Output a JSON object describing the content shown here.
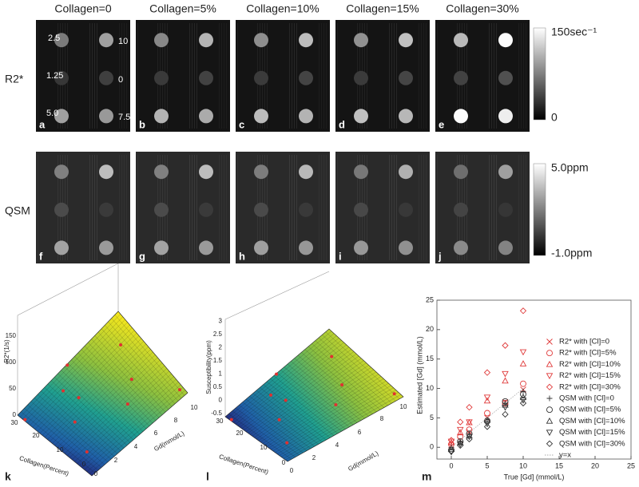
{
  "column_headers": [
    "Collagen=0",
    "Collagen=5%",
    "Collagen=10%",
    "Collagen=15%",
    "Collagen=30%"
  ],
  "row_labels": [
    "R2*",
    "QSM"
  ],
  "panel_letters": [
    "a",
    "b",
    "c",
    "d",
    "e",
    "f",
    "g",
    "h",
    "i",
    "j",
    "k",
    "l",
    "m"
  ],
  "concentration_labels": [
    "2.5",
    "10",
    "1.25",
    "0",
    "5.0",
    "7.5"
  ],
  "colorbars": [
    {
      "max": "150sec⁻¹",
      "min": "0"
    },
    {
      "max": "5.0ppm",
      "min": "-1.0ppm"
    }
  ],
  "panel_k": {
    "z_label": "R2*(1/s)",
    "z_ticks": [
      "0",
      "50",
      "100",
      "150"
    ],
    "collagen_label": "Collagen(Percent)",
    "collagen_ticks": [
      "30",
      "20",
      "10",
      "0"
    ],
    "gd_label": "Gd(mmol/L)",
    "gd_ticks": [
      "0",
      "2",
      "4",
      "6",
      "8",
      "10"
    ]
  },
  "panel_l": {
    "z_label": "Susceptibility(ppm)",
    "z_ticks": [
      "-0.5",
      "0",
      "0.5",
      "1",
      "1.5",
      "2",
      "2.5",
      "3"
    ],
    "collagen_label": "Collagen(Percent)",
    "collagen_ticks": [
      "30",
      "20",
      "10",
      "0"
    ],
    "gd_label": "Gd(mmol/L)",
    "gd_ticks": [
      "0",
      "2",
      "4",
      "6",
      "8",
      "10"
    ]
  },
  "chart_data": {
    "type": "scatter",
    "x_label": "True [Gd] (mmol/L)",
    "y_label": "Estimated [Gd] (mmol/L)",
    "x": [
      0,
      1.25,
      2.5,
      5,
      7.5,
      10
    ],
    "xlim": [
      -2,
      25
    ],
    "xticks": [
      0,
      5,
      10,
      15,
      20,
      25
    ],
    "ylim": [
      -2,
      25
    ],
    "yticks": [
      0,
      5,
      10,
      15,
      20,
      25
    ],
    "series": [
      {
        "name": "R2* with [Cl]=0",
        "color": "#e03a3a",
        "marker": "x",
        "values": [
          0.2,
          1.2,
          2.6,
          5.0,
          7.7,
          9.8
        ]
      },
      {
        "name": "R2* with [Cl]=5%",
        "color": "#e03a3a",
        "marker": "o",
        "values": [
          0.5,
          1.8,
          3.0,
          5.8,
          7.5,
          10.8
        ]
      },
      {
        "name": "R2* with [Cl]=10%",
        "color": "#e03a3a",
        "marker": "^",
        "values": [
          0.8,
          2.5,
          4.2,
          7.9,
          11.3,
          14.2
        ]
      },
      {
        "name": "R2* with [Cl]=15%",
        "color": "#e03a3a",
        "marker": "v",
        "values": [
          1.0,
          3.0,
          4.3,
          8.5,
          12.5,
          16.2
        ]
      },
      {
        "name": "R2* with [Cl]=30%",
        "color": "#e03a3a",
        "marker": "d",
        "values": [
          1.2,
          4.3,
          6.8,
          12.7,
          17.3,
          23.2
        ]
      },
      {
        "name": "QSM with [Cl]=0",
        "color": "#333333",
        "marker": "+",
        "values": [
          0.0,
          1.0,
          2.2,
          4.7,
          7.5,
          9.5
        ]
      },
      {
        "name": "QSM with [Cl]=5%",
        "color": "#333333",
        "marker": "o",
        "values": [
          -0.5,
          1.0,
          2.3,
          4.5,
          7.8,
          9.0
        ]
      },
      {
        "name": "QSM with [Cl]=10%",
        "color": "#333333",
        "marker": "^",
        "values": [
          -0.3,
          0.8,
          2.0,
          4.6,
          7.2,
          8.5
        ]
      },
      {
        "name": "QSM with [Cl]=15%",
        "color": "#333333",
        "marker": "v",
        "values": [
          -0.8,
          0.5,
          1.8,
          4.0,
          6.8,
          8.0
        ]
      },
      {
        "name": "QSM with [Cl]=30%",
        "color": "#333333",
        "marker": "d",
        "values": [
          -0.7,
          0.3,
          1.4,
          3.5,
          5.6,
          7.5
        ]
      },
      {
        "name": "y=x",
        "color": "#aaaaaa",
        "marker": "line",
        "values": [
          0,
          1.25,
          2.5,
          5,
          7.5,
          10
        ]
      }
    ]
  }
}
